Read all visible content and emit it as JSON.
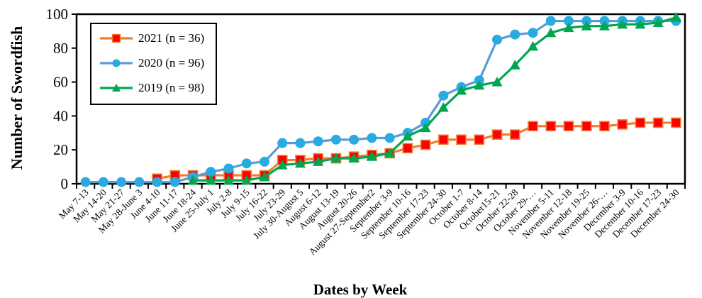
{
  "chart_data": {
    "type": "line",
    "title": "",
    "xlabel": "Dates by Week",
    "ylabel": "Number of Swordfish",
    "ylim": [
      0,
      100
    ],
    "yticks": [
      0,
      20,
      40,
      60,
      80,
      100
    ],
    "grid": false,
    "legend_position": "upper-left-inside",
    "categories": [
      "May 7-13",
      "May 14-20",
      "May 21-27",
      "May 28-June 3",
      "June 4-10",
      "June 11-17",
      "June 18-24",
      "June 25-July 1",
      "July 2-8",
      "July 9-15",
      "July 16-22",
      "July 23-29",
      "July 30-August 5",
      "August 6-12",
      "August 13-19",
      "August 20-26",
      "August 27-September2",
      "September 3-9",
      "September 10-16",
      "September 17-23",
      "September 24-30",
      "October 1-7",
      "October 8-14",
      "October15-21",
      "October 22-28",
      "October 29-…",
      "November 5-11",
      "November 12-18",
      "November 19-25",
      "November 26-…",
      "December 3-9",
      "December 10-16",
      "December 17-23",
      "December 24-30"
    ],
    "series": [
      {
        "name": "2021 (n = 36)",
        "marker": "square",
        "line_color": "#ED7D31",
        "marker_color": "#FF0000",
        "values": [
          null,
          null,
          null,
          null,
          3,
          5,
          5,
          5,
          5,
          5,
          5,
          14,
          14,
          15,
          15,
          16,
          17,
          18,
          21,
          23,
          26,
          26,
          26,
          29,
          29,
          34,
          34,
          34,
          34,
          34,
          35,
          36,
          36,
          36
        ]
      },
      {
        "name": "2020 (n = 96)",
        "marker": "circle",
        "line_color": "#5B9BD5",
        "marker_color": "#29ABE2",
        "values": [
          1,
          1,
          1,
          1,
          1,
          1,
          4,
          7,
          9,
          12,
          13,
          24,
          24,
          25,
          26,
          26,
          27,
          27,
          30,
          36,
          52,
          57,
          61,
          85,
          88,
          89,
          96,
          96,
          96,
          96,
          96,
          96,
          96,
          96
        ]
      },
      {
        "name": "2019 (n = 98)",
        "marker": "triangle",
        "line_color": "#00A651",
        "marker_color": "#00A651",
        "values": [
          null,
          null,
          null,
          null,
          null,
          null,
          2,
          2,
          2,
          2,
          4,
          11,
          12,
          13,
          15,
          15,
          16,
          18,
          28,
          33,
          45,
          55,
          58,
          60,
          70,
          81,
          89,
          92,
          93,
          93,
          94,
          94,
          95,
          98
        ]
      }
    ],
    "axis_color": "#000000",
    "background_color": "#FFFFFF"
  }
}
